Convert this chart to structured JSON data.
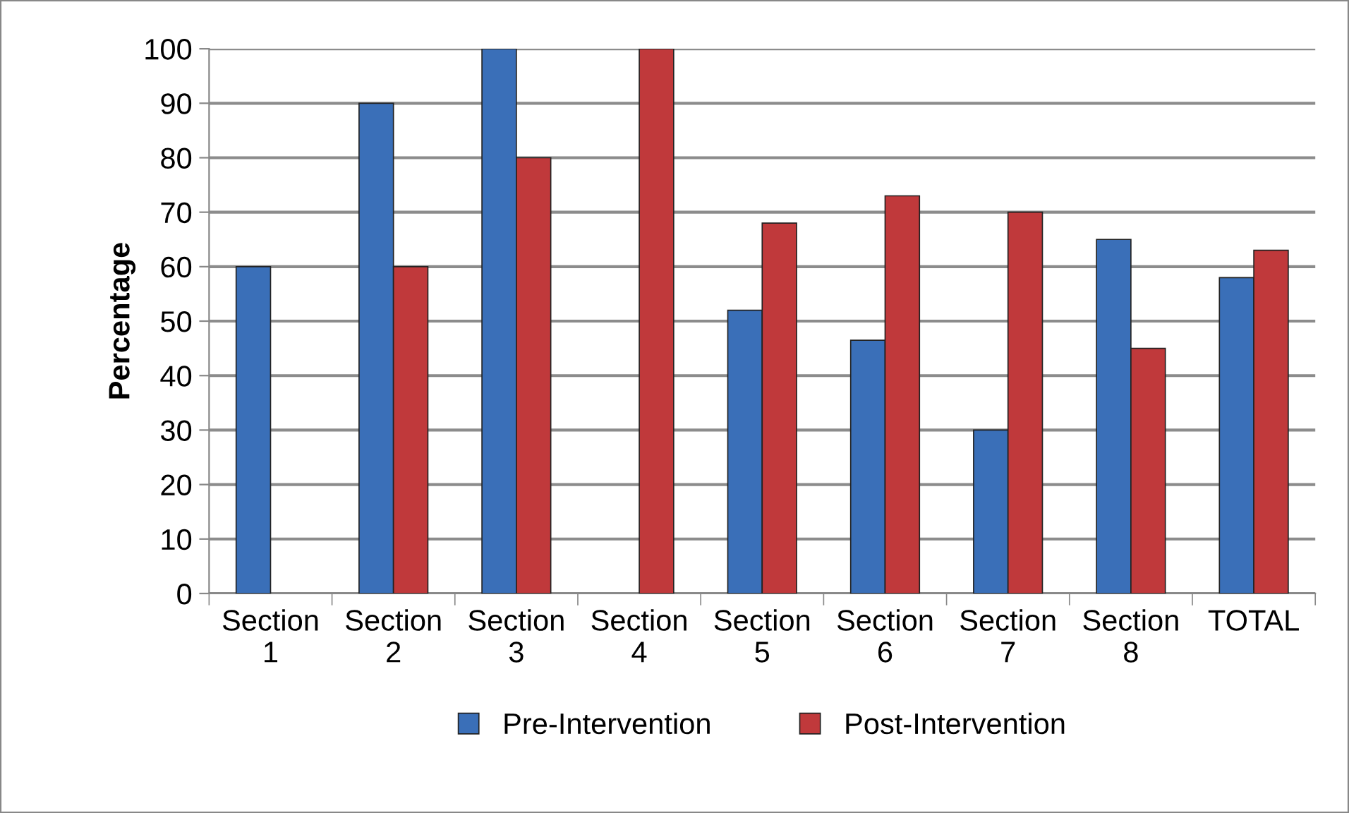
{
  "chart_data": {
    "type": "bar",
    "ylabel": "Percentage",
    "categories": [
      "Section\n1",
      "Section\n2",
      "Section\n3",
      "Section\n4",
      "Section\n5",
      "Section\n6",
      "Section\n7",
      "Section\n8",
      "TOTAL"
    ],
    "series": [
      {
        "name": "Pre-Intervention",
        "color": "#3a6fb8",
        "values": [
          60,
          90,
          100,
          null,
          52,
          46.5,
          30,
          65,
          58
        ]
      },
      {
        "name": "Post-Intervention",
        "color": "#c0393b",
        "values": [
          null,
          60,
          80,
          100,
          68,
          73,
          70,
          45,
          63
        ]
      }
    ],
    "ylim": [
      0,
      100
    ],
    "yticks": [
      0,
      10,
      20,
      30,
      40,
      50,
      60,
      70,
      80,
      90,
      100
    ],
    "grid": "y",
    "legend": "bottom"
  }
}
